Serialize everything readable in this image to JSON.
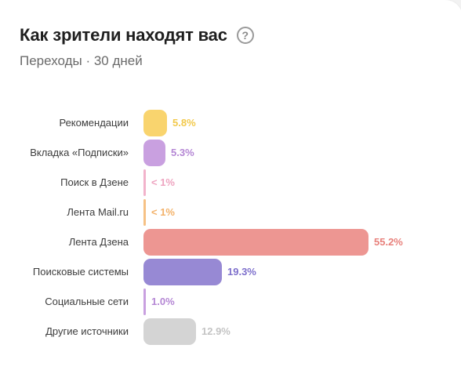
{
  "header": {
    "title": "Как зрители находят вас",
    "help_icon": "question-circle-icon",
    "subtitle": "Переходы · 30 дней"
  },
  "chart_data": {
    "type": "bar",
    "orientation": "horizontal",
    "categories": [
      "Рекомендации",
      "Вкладка «Подписки»",
      "Поиск в Дзене",
      "Лента Mail.ru",
      "Лента Дзена",
      "Поисковые системы",
      "Социальные сети",
      "Другие источники"
    ],
    "values": [
      5.8,
      5.3,
      0.5,
      0.5,
      55.2,
      19.3,
      1.0,
      12.9
    ],
    "value_labels": [
      "5.8%",
      "5.3%",
      "< 1%",
      "< 1%",
      "55.2%",
      "19.3%",
      "1.0%",
      "12.9%"
    ],
    "colors": [
      "#f9d46e",
      "#c9a0e0",
      "#f2b3cb",
      "#f6c185",
      "#ed9692",
      "#9789d4",
      "#c9a0e0",
      "#d4d4d4"
    ],
    "value_colors": [
      "#f2c94c",
      "#b486d4",
      "#eea4c0",
      "#f3b26a",
      "#e8817c",
      "#7e70cc",
      "#b486d4",
      "#c4c4c4"
    ],
    "xlim": [
      0,
      55.2
    ],
    "grid": false,
    "legend": "none"
  }
}
